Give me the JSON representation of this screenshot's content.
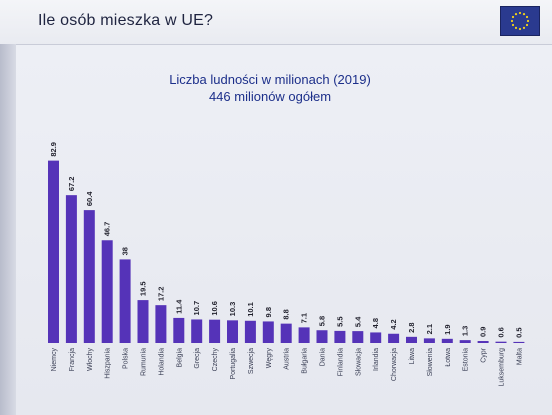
{
  "header": {
    "title": "Ile osób mieszka w UE?",
    "eu_flag": "eu-flag-icon"
  },
  "chart_data": {
    "type": "bar",
    "title": "Liczba ludności w milionach (2019)",
    "subtitle": "446 milionów ogółem",
    "categories": [
      "Niemcy",
      "Francja",
      "Włochy",
      "Hiszpania",
      "Polska",
      "Rumunia",
      "Holandia",
      "Belgia",
      "Grecja",
      "Czechy",
      "Portugalia",
      "Szwecja",
      "Węgry",
      "Austria",
      "Bułgaria",
      "Dania",
      "Finlandia",
      "Słowacja",
      "Irlandia",
      "Chorwacja",
      "Litwa",
      "Słowenia",
      "Łotwa",
      "Estonia",
      "Cypr",
      "Luksemburg",
      "Malta"
    ],
    "values": [
      82.9,
      67.2,
      60.4,
      46.7,
      38,
      19.5,
      17.2,
      11.4,
      10.7,
      10.6,
      10.3,
      10.1,
      9.8,
      8.8,
      7.1,
      5.8,
      5.5,
      5.4,
      4.8,
      4.2,
      2.8,
      2.1,
      1.9,
      1.3,
      0.9,
      0.6,
      0.5
    ],
    "value_labels": [
      "82.9",
      "67.2",
      "60.4",
      "46.7",
      "38",
      "19.5",
      "17.2",
      "11.4",
      "10.7",
      "10.6",
      "10.3",
      "10.1",
      "9.8",
      "8.8",
      "7.1",
      "5.8",
      "5.5",
      "5.4",
      "4.8",
      "4.2",
      "2.8",
      "2.1",
      "1.9",
      "1.3",
      "0.9",
      "0.6",
      "0.5"
    ],
    "ylim": [
      0,
      90
    ],
    "colors": {
      "bar": "#5533b8"
    },
    "orientation_of_labels": "vertical",
    "grid": false,
    "legend": "none"
  }
}
